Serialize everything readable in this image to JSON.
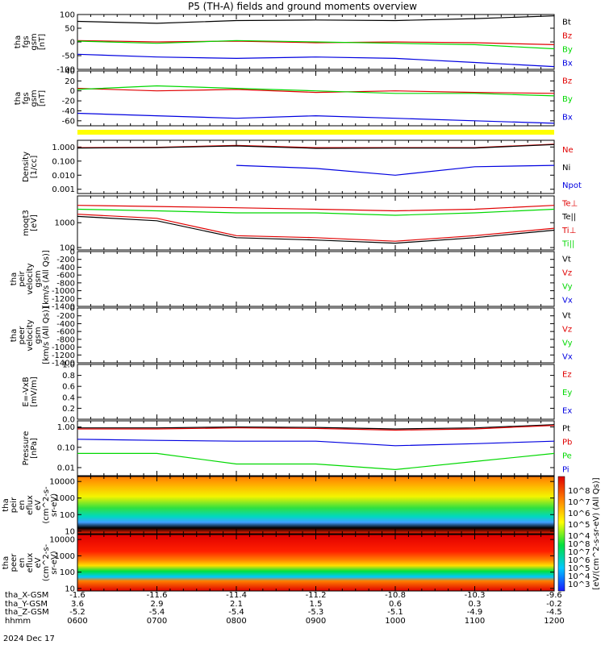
{
  "title": "P5 (TH-A) fields and ground moments overview",
  "colors": {
    "black": "#000000",
    "red": "#e00000",
    "green": "#00d800",
    "blue": "#0000e0",
    "yellow": "#ffff00"
  },
  "footer": {
    "labels": [
      "tha_X-GSM",
      "tha_Y-GSM",
      "tha_Z-GSM",
      "hhmm"
    ],
    "columns": [
      {
        "x": "-1.6",
        "y": "3.6",
        "z": "-5.2",
        "t": "0600"
      },
      {
        "x": "-11.6",
        "y": "2.9",
        "z": "-5.4",
        "t": "0700"
      },
      {
        "x": "-11.4",
        "y": "2.1",
        "z": "-5.4",
        "t": "0800"
      },
      {
        "x": "-11.2",
        "y": "1.5",
        "z": "-5.3",
        "t": "0900"
      },
      {
        "x": "-10.8",
        "y": "0.6",
        "z": "-5.1",
        "t": "1000"
      },
      {
        "x": "-10.3",
        "y": "0.3",
        "z": "-4.9",
        "t": "1100"
      },
      {
        "x": "-9.6",
        "y": "-0.2",
        "z": "-4.5",
        "t": "1200"
      }
    ],
    "date": "2024 Dec 17"
  },
  "chart_data": [
    {
      "type": "line",
      "ylabel": [
        "tha",
        "fgs",
        "gsm",
        "[nT]"
      ],
      "ylim": [
        -100,
        100
      ],
      "ticks": [
        "100",
        "50",
        "0",
        "-50",
        "-100"
      ],
      "legend": [
        {
          "name": "Bt",
          "color": "black"
        },
        {
          "name": "Bz",
          "color": "red"
        },
        {
          "name": "By",
          "color": "green"
        },
        {
          "name": "Bx",
          "color": "blue"
        }
      ],
      "x": [
        "0600",
        "0700",
        "0800",
        "0900",
        "1000",
        "1100",
        "1200"
      ],
      "series": [
        {
          "name": "Bt",
          "values": [
            75,
            68,
            78,
            80,
            78,
            85,
            95
          ]
        },
        {
          "name": "Bz",
          "values": [
            5,
            0,
            3,
            -3,
            0,
            -3,
            -10
          ]
        },
        {
          "name": "By",
          "values": [
            3,
            -5,
            5,
            0,
            -5,
            -10,
            -25
          ]
        },
        {
          "name": "Bx",
          "values": [
            -45,
            -55,
            -60,
            -55,
            -60,
            -75,
            -90
          ]
        }
      ]
    },
    {
      "type": "line",
      "ylabel": [
        "tha",
        "fgs",
        "gsm",
        "[nT]"
      ],
      "ylim": [
        -70,
        40
      ],
      "ticks": [
        "40",
        "20",
        "0",
        "-20",
        "-40",
        "-60"
      ],
      "legend": [
        {
          "name": "Bz",
          "color": "red"
        },
        {
          "name": "By",
          "color": "green"
        },
        {
          "name": "Bx",
          "color": "blue"
        }
      ],
      "x": [
        "0600",
        "0700",
        "0800",
        "0900",
        "1000",
        "1100",
        "1200"
      ],
      "series": [
        {
          "name": "Bz",
          "values": [
            5,
            0,
            3,
            -3,
            0,
            -3,
            -5
          ]
        },
        {
          "name": "By",
          "values": [
            3,
            10,
            5,
            0,
            -5,
            -5,
            -10
          ]
        },
        {
          "name": "Bx",
          "values": [
            -45,
            -50,
            -55,
            -50,
            -55,
            -60,
            -65
          ]
        }
      ]
    },
    {
      "type": "line",
      "ylabel": [
        "Density",
        "[1/cc]"
      ],
      "scale": "log",
      "ylim": [
        0.0005,
        3
      ],
      "ticks": [
        "1.000",
        "0.100",
        "0.010",
        "0.001"
      ],
      "legend": [
        {
          "name": "Ne",
          "color": "red"
        },
        {
          "name": "Ni",
          "color": "black"
        },
        {
          "name": "Npot",
          "color": "blue"
        }
      ],
      "x": [
        "0600",
        "0700",
        "0800",
        "0900",
        "1000",
        "1100",
        "1200"
      ],
      "series": [
        {
          "name": "Ne",
          "values": [
            0.9,
            0.95,
            1.3,
            0.9,
            0.9,
            0.9,
            1.6
          ]
        },
        {
          "name": "Ni",
          "values": [
            0.85,
            0.9,
            1.2,
            0.8,
            0.85,
            0.85,
            1.5
          ]
        },
        {
          "name": "Npot",
          "values": [
            null,
            null,
            0.05,
            0.03,
            0.01,
            0.04,
            0.05
          ]
        }
      ]
    },
    {
      "type": "line",
      "ylabel": [
        "moqt3",
        "[eV]"
      ],
      "scale": "log",
      "ylim": [
        80,
        12000
      ],
      "ticks": [
        "1000",
        "100"
      ],
      "legend": [
        {
          "name": "Te⊥",
          "color": "red"
        },
        {
          "name": "Te||",
          "color": "black"
        },
        {
          "name": "Ti⊥",
          "color": "red"
        },
        {
          "name": "Ti||",
          "color": "green"
        }
      ],
      "x": [
        "0600",
        "0700",
        "0800",
        "0900",
        "1000",
        "1100",
        "1200"
      ],
      "series": [
        {
          "name": "Ti⊥",
          "values": [
            5000,
            4500,
            4000,
            3500,
            3000,
            3500,
            5000
          ]
        },
        {
          "name": "Ti||",
          "values": [
            3500,
            3000,
            2500,
            2500,
            2000,
            2500,
            3500
          ]
        },
        {
          "name": "Te⊥",
          "values": [
            2200,
            1500,
            300,
            250,
            180,
            300,
            600
          ]
        },
        {
          "name": "Te||",
          "values": [
            1800,
            1200,
            250,
            200,
            150,
            250,
            500
          ]
        }
      ]
    },
    {
      "type": "line",
      "ylabel": [
        "tha",
        "peir",
        "velocity",
        "gsm",
        "[km/s (All Qs)]"
      ],
      "ylim": [
        -1400,
        0
      ],
      "ticks": [
        "0",
        "-200",
        "-400",
        "-600",
        "-800",
        "-1000",
        "-1200",
        "-1400"
      ],
      "legend": [
        {
          "name": "Vt",
          "color": "black"
        },
        {
          "name": "Vz",
          "color": "red"
        },
        {
          "name": "Vy",
          "color": "green"
        },
        {
          "name": "Vx",
          "color": "blue"
        }
      ],
      "series": []
    },
    {
      "type": "line",
      "ylabel": [
        "tha",
        "peer",
        "velocity",
        "gsm",
        "[km/s (All Qs)]"
      ],
      "ylim": [
        -1400,
        0
      ],
      "ticks": [
        "0",
        "-200",
        "-400",
        "-600",
        "-800",
        "-1000",
        "-1200",
        "-1400"
      ],
      "legend": [
        {
          "name": "Vt",
          "color": "black"
        },
        {
          "name": "Vz",
          "color": "red"
        },
        {
          "name": "Vy",
          "color": "green"
        },
        {
          "name": "Vx",
          "color": "blue"
        }
      ],
      "series": []
    },
    {
      "type": "line",
      "ylabel": [
        "E=-VxB",
        "[mV/m]"
      ],
      "ylim": [
        0,
        1
      ],
      "ticks": [
        "1.0",
        "0.8",
        "0.6",
        "0.4",
        "0.2",
        "0.0"
      ],
      "legend": [
        {
          "name": "Ez",
          "color": "red"
        },
        {
          "name": "Ey",
          "color": "green"
        },
        {
          "name": "Ex",
          "color": "blue"
        }
      ],
      "series": []
    },
    {
      "type": "line",
      "ylabel": [
        "Pressure",
        "[nPa]"
      ],
      "scale": "log",
      "ylim": [
        0.004,
        2
      ],
      "ticks": [
        "1.00",
        "0.10",
        "0.01"
      ],
      "legend": [
        {
          "name": "Pt",
          "color": "black"
        },
        {
          "name": "Pb",
          "color": "red"
        },
        {
          "name": "Pe",
          "color": "green"
        },
        {
          "name": "Pi",
          "color": "blue"
        }
      ],
      "x": [
        "0600",
        "0700",
        "0800",
        "0900",
        "1000",
        "1100",
        "1200"
      ],
      "series": [
        {
          "name": "Pt",
          "values": [
            0.9,
            0.9,
            1.0,
            0.95,
            0.8,
            0.9,
            1.3
          ]
        },
        {
          "name": "Pb",
          "values": [
            0.8,
            0.8,
            0.9,
            0.85,
            0.7,
            0.8,
            1.2
          ]
        },
        {
          "name": "Pi",
          "values": [
            0.25,
            0.22,
            0.2,
            0.2,
            0.12,
            0.15,
            0.2
          ]
        },
        {
          "name": "Pe",
          "values": [
            0.05,
            0.05,
            0.015,
            0.015,
            0.008,
            0.02,
            0.05
          ]
        }
      ]
    },
    {
      "type": "heatmap",
      "ylabel": [
        "tha",
        "peir",
        "en",
        "eflux",
        "eV",
        "(cm^2-s-",
        "sr-eV)"
      ],
      "scale": "log",
      "ylim": [
        7,
        20000
      ],
      "ticks": [
        "10000",
        "1000",
        "100",
        "10"
      ]
    },
    {
      "type": "heatmap",
      "ylabel": [
        "tha",
        "peer",
        "en",
        "eflux",
        "eV",
        "(cm^2-s-",
        "sr-eV)"
      ],
      "scale": "log",
      "ylim": [
        7,
        20000
      ],
      "ticks": [
        "10000",
        "1000",
        "100",
        "10"
      ]
    }
  ],
  "colorbar": {
    "label": "[eV/(cm^2-s-sr-eV) (All Qs)]",
    "upper_ticks": [
      "10^8",
      "10^7",
      "10^6",
      "10^5",
      "10^4"
    ],
    "lower_ticks": [
      "10^8",
      "10^7",
      "10^6",
      "10^5",
      "10^4",
      "10^3"
    ]
  },
  "flag_bar": {
    "color": "yellow"
  }
}
